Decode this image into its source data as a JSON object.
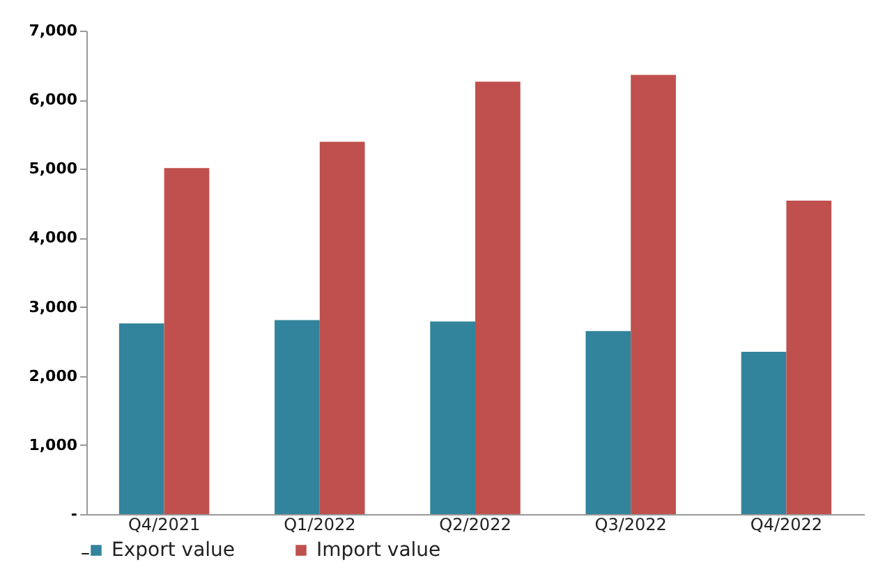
{
  "chart_data": {
    "type": "bar",
    "categories": [
      "Q4/2021",
      "Q1/2022",
      "Q2/2022",
      "Q3/2022",
      "Q4/2022"
    ],
    "series": [
      {
        "name": "Export value",
        "color": "#31849b",
        "values": [
          2760,
          2810,
          2790,
          2650,
          2350
        ]
      },
      {
        "name": "Import value",
        "color": "#c0504d",
        "values": [
          5010,
          5390,
          6260,
          6360,
          4540
        ]
      }
    ],
    "ylim": [
      0,
      7000
    ],
    "yticks": [
      {
        "value": 0,
        "label": "-"
      },
      {
        "value": 1000,
        "label": "1,000"
      },
      {
        "value": 2000,
        "label": "2,000"
      },
      {
        "value": 3000,
        "label": "3,000"
      },
      {
        "value": 4000,
        "label": "4,000"
      },
      {
        "value": 5000,
        "label": "5,000"
      },
      {
        "value": 6000,
        "label": "6,000"
      },
      {
        "value": 7000,
        "label": "7,000"
      }
    ],
    "grid": false,
    "legend": "bottom",
    "annotations": [
      "–"
    ]
  }
}
